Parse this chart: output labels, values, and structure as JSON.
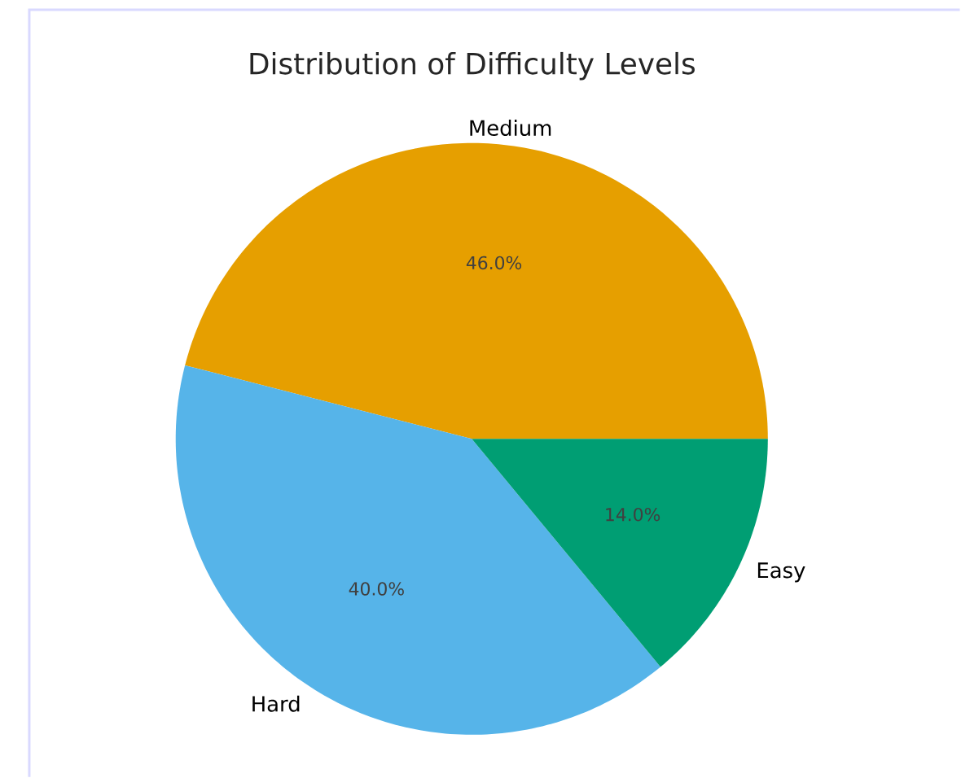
{
  "chart_data": {
    "type": "pie",
    "title": "Distribution of Difficulty Levels",
    "categories": [
      "Medium",
      "Hard",
      "Easy"
    ],
    "values": [
      46,
      40,
      14
    ],
    "value_labels": [
      "46.0%",
      "40.0%",
      "14.0%"
    ],
    "colors": [
      "#e69f00",
      "#56b4e9",
      "#009e73"
    ]
  }
}
